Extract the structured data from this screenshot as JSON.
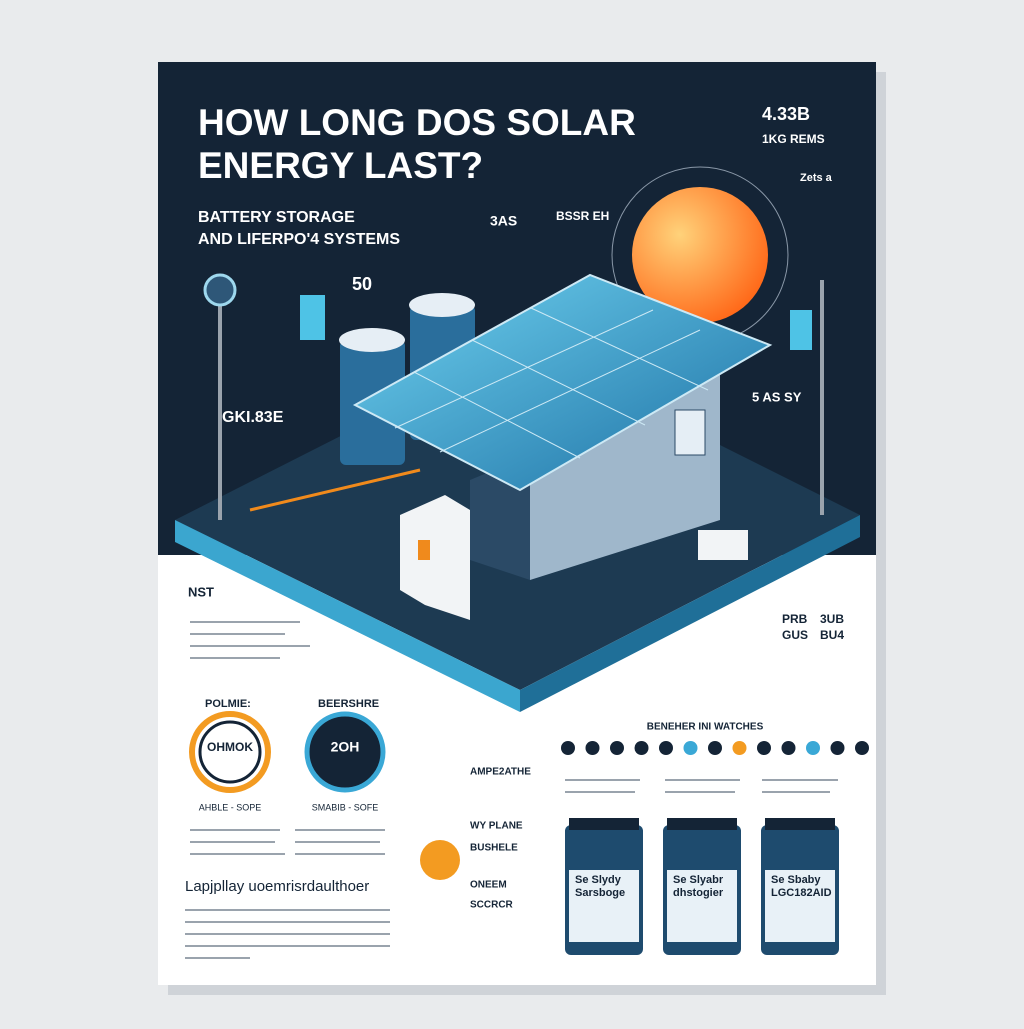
{
  "header": {
    "title_lines": [
      "HOW LONG DOS SOLAR",
      "ENERGY LAST?"
    ],
    "subtitle_lines": [
      "BATTERY STORAGE",
      "AND LIFERPO'4 SYSTEMS"
    ]
  },
  "callouts": {
    "top_right": [
      "4.33B",
      "1KG REMS",
      "Zets a"
    ],
    "sun_label": "BSSR EH",
    "mid_label": "3AS",
    "number": "50",
    "left_label": "GKI.83E",
    "right_label": "5 AS SY"
  },
  "left_panel": {
    "heading": "NST"
  },
  "gauges": [
    {
      "label": "POLMIE:",
      "value": "OHMOK",
      "caption": "AHBLE - SOPE"
    },
    {
      "label": "BEERSHRE",
      "value": "2OH",
      "caption": "SMABIB - SOFE"
    }
  ],
  "footer": {
    "heading": "Lapjpllay uoemrisrdaulthoer"
  },
  "center_list": {
    "headings": [
      "AMPE2ATHE",
      "WY PLANE",
      "BUSHELE",
      "ONEEM",
      "SCCRCR"
    ]
  },
  "stats": [
    "PRB",
    "3UB",
    "GUS",
    "BU4"
  ],
  "comparison": {
    "title": "BENEHER INI WATCHES",
    "batteries": [
      {
        "label_lines": [
          "Se Slydy",
          "Sarsboge"
        ]
      },
      {
        "label_lines": [
          "Se Slyabr",
          "dhstogier"
        ]
      },
      {
        "label_lines": [
          "Se Sbaby",
          "LGC182AID"
        ]
      }
    ]
  }
}
